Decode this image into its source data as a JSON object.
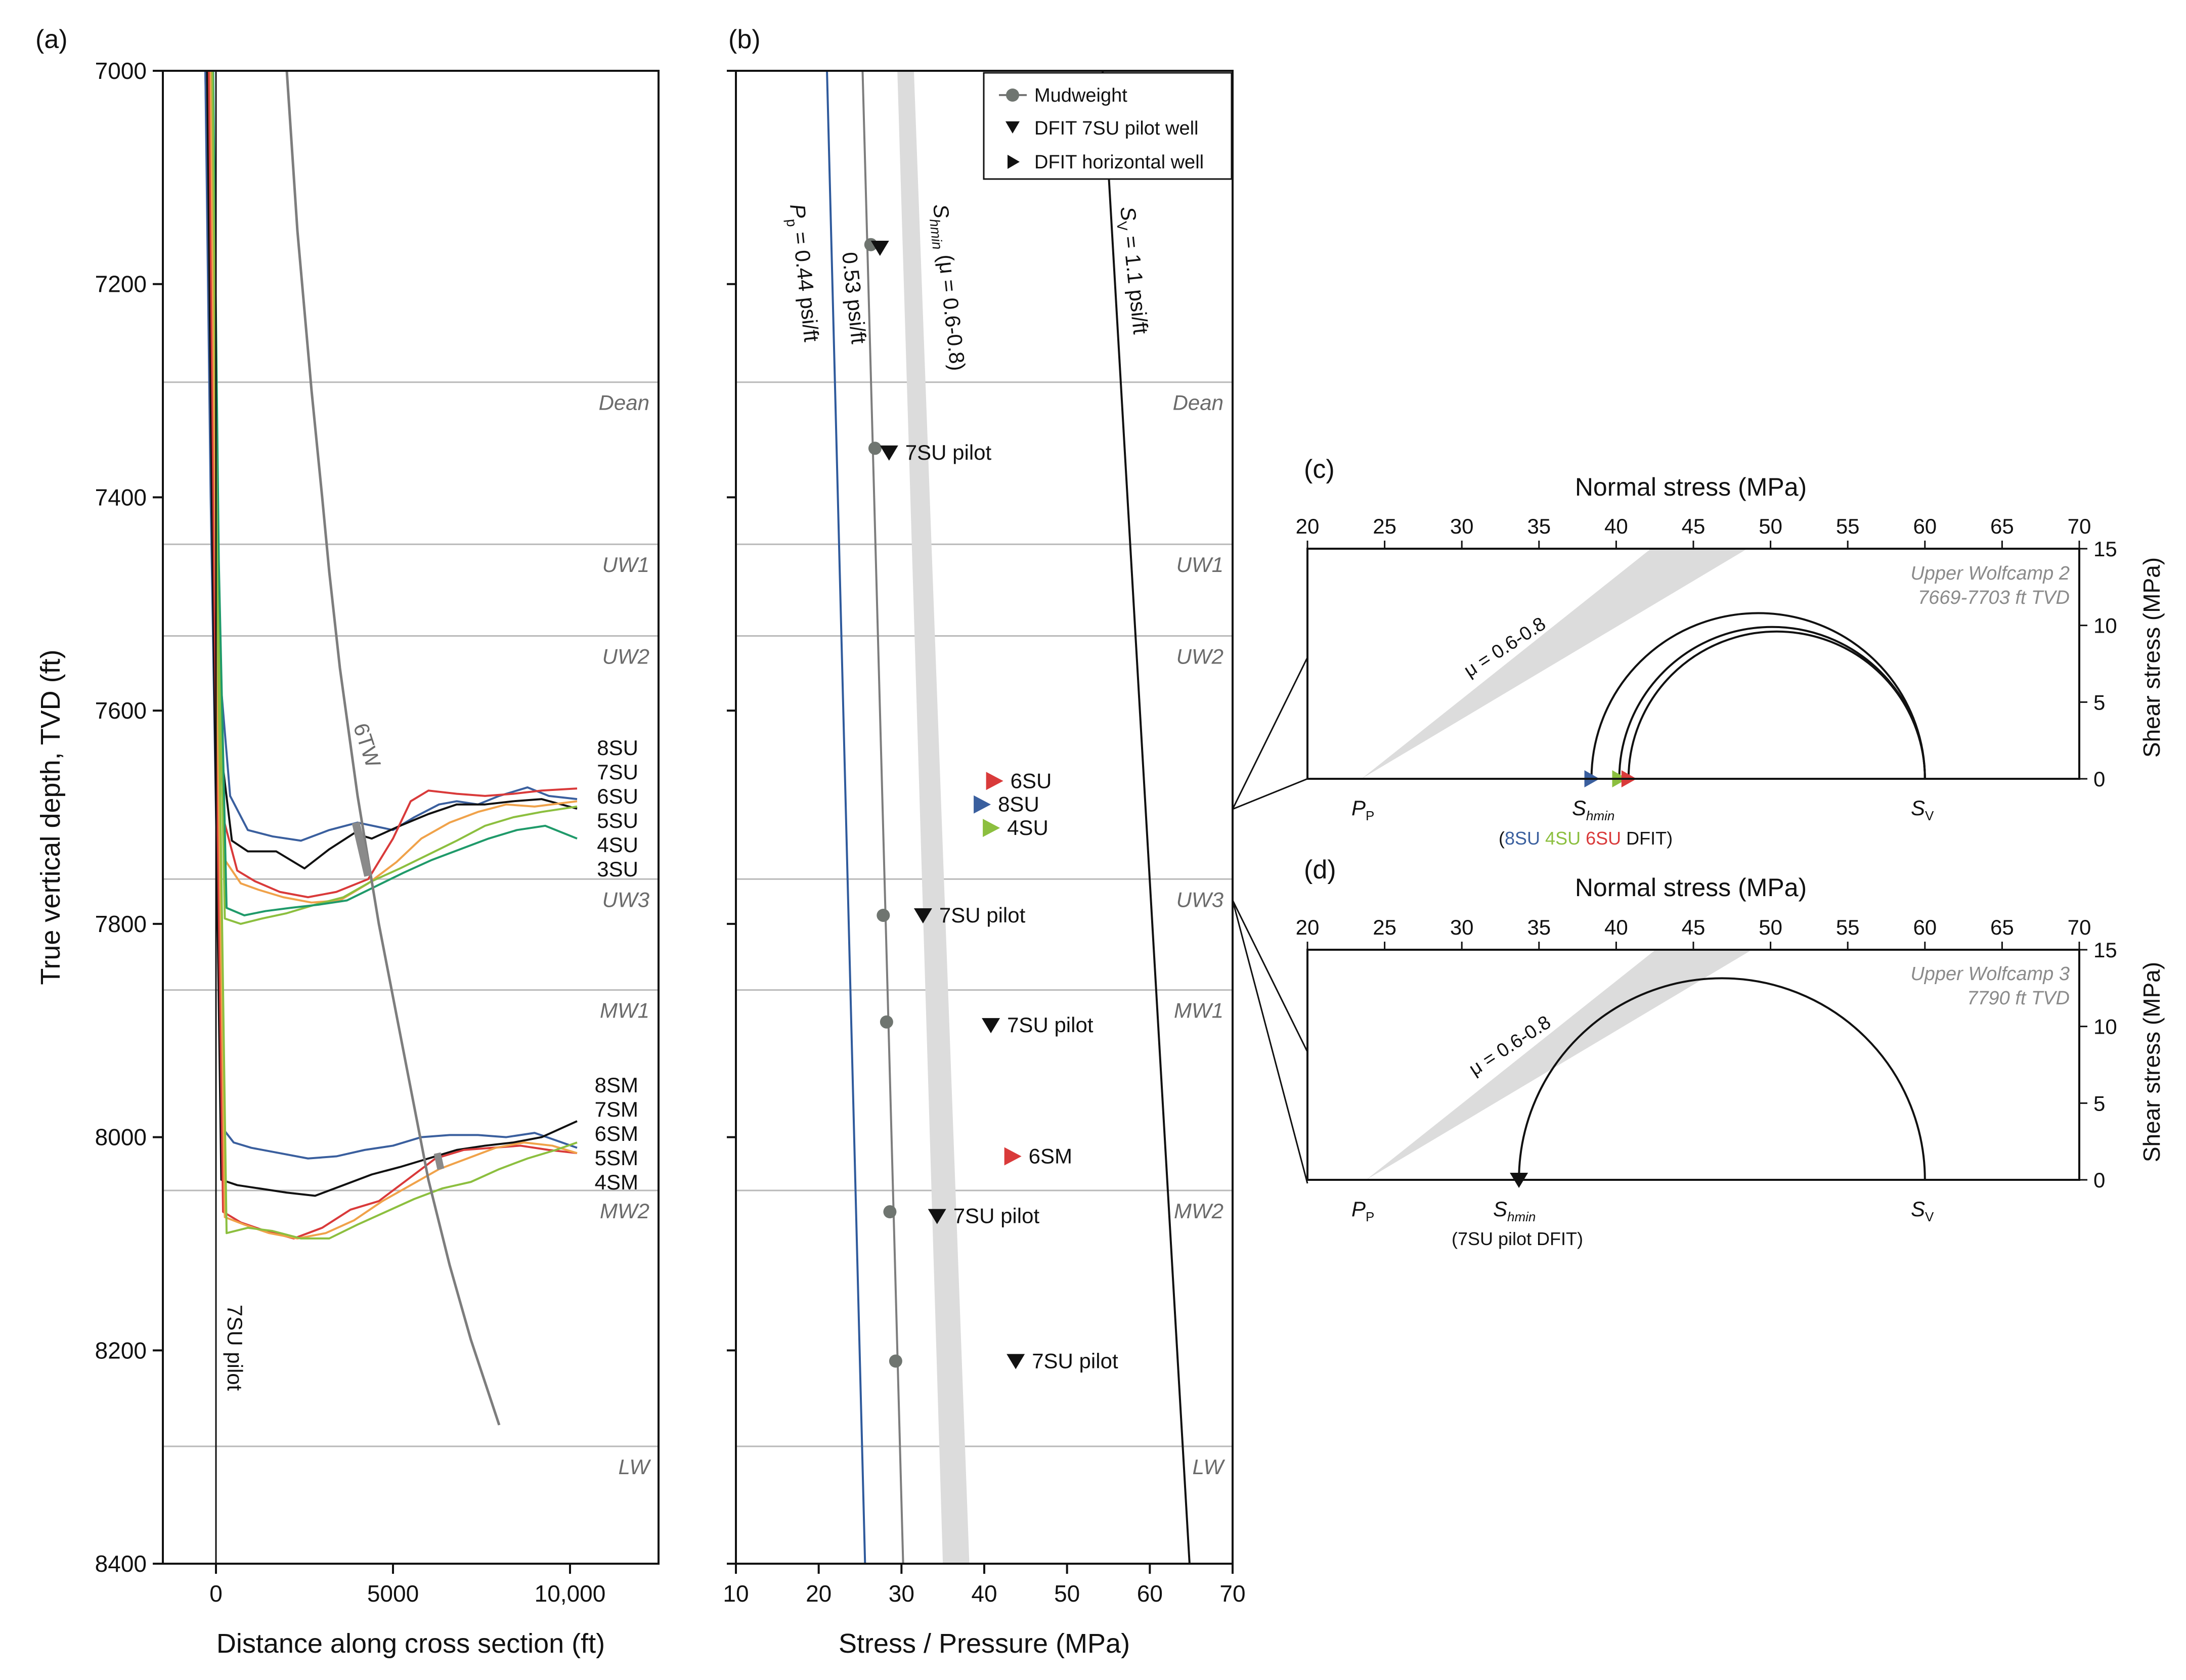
{
  "colors": {
    "8SU": "#3a5f9e",
    "7SU": "#111111",
    "6SU": "#d93a3a",
    "5SU": "#f0a24a",
    "4SU": "#8cbf3f",
    "3SU": "#1f9a6a",
    "gray": "#7d7d7d",
    "shade": "#dcdcdc",
    "pp": "#2f5a9c"
  },
  "chart_data": [
    {
      "type": "line",
      "panel": "(a)",
      "xlabel": "Distance along cross section (ft)",
      "ylabel": "True vertical depth, TVD (ft)",
      "xlim": [
        -1500,
        12500
      ],
      "ylim": [
        8400,
        7000
      ],
      "x_ticks": [
        0,
        5000,
        10000
      ],
      "x_tick_labels": [
        "0",
        "5000",
        "10,000"
      ],
      "y_ticks": [
        7000,
        7200,
        7400,
        7600,
        7800,
        8000,
        8200,
        8400
      ],
      "y_tick_labels": [
        "7000",
        "7200",
        "7400",
        "7600",
        "7800",
        "8000",
        "8200",
        "8400"
      ],
      "formation_tops": [
        {
          "name": "Dean",
          "depth": 7292
        },
        {
          "name": "UW1",
          "depth": 7444
        },
        {
          "name": "UW2",
          "depth": 7530
        },
        {
          "name": "UW3",
          "depth": 7758
        },
        {
          "name": "MW1",
          "depth": 7862
        },
        {
          "name": "MW2",
          "depth": 8050
        },
        {
          "name": "LW",
          "depth": 8290
        }
      ],
      "well_labels": [
        "7SU pilot",
        "6TW"
      ],
      "series": [
        {
          "name": "8SU",
          "x": [
            -300,
            -150,
            100,
            400,
            900,
            1600,
            2400,
            3200,
            4000,
            5000,
            5600,
            6300,
            6800,
            7400,
            8000,
            8800,
            9400,
            10200
          ],
          "y": [
            7000,
            7300,
            7560,
            7680,
            7712,
            7718,
            7722,
            7712,
            7705,
            7712,
            7700,
            7688,
            7685,
            7688,
            7680,
            7672,
            7680,
            7683
          ]
        },
        {
          "name": "7SU",
          "x": [
            -250,
            -100,
            150,
            450,
            900,
            1700,
            2500,
            3200,
            3900,
            4400,
            5200,
            6000,
            6800,
            7600,
            8400,
            9200,
            10200
          ],
          "y": [
            7000,
            7350,
            7640,
            7722,
            7732,
            7732,
            7748,
            7730,
            7715,
            7720,
            7708,
            7697,
            7688,
            7688,
            7685,
            7683,
            7692
          ]
        },
        {
          "name": "6SU",
          "x": [
            -200,
            -50,
            200,
            600,
            1100,
            1800,
            2600,
            3400,
            4300,
            5000,
            5500,
            6000,
            6800,
            7600,
            8400,
            9200,
            10200
          ],
          "y": [
            7000,
            7380,
            7700,
            7750,
            7760,
            7770,
            7775,
            7770,
            7758,
            7720,
            7685,
            7675,
            7678,
            7680,
            7678,
            7675,
            7673
          ]
        },
        {
          "name": "5SU",
          "x": [
            -150,
            0,
            250,
            700,
            1200,
            1900,
            2700,
            3500,
            4300,
            5100,
            5800,
            6600,
            7400,
            8200,
            9000,
            10200
          ],
          "y": [
            7000,
            7420,
            7740,
            7762,
            7768,
            7775,
            7780,
            7778,
            7762,
            7742,
            7720,
            7705,
            7695,
            7688,
            7690,
            7685
          ]
        },
        {
          "name": "4SU",
          "x": [
            -100,
            50,
            250,
            700,
            1300,
            2000,
            2800,
            3600,
            4400,
            5200,
            6000,
            6800,
            7600,
            8400,
            9200,
            10200
          ],
          "y": [
            7000,
            7450,
            7795,
            7800,
            7795,
            7790,
            7782,
            7775,
            7760,
            7748,
            7735,
            7722,
            7708,
            7700,
            7695,
            7690
          ]
        },
        {
          "name": "3SU",
          "x": [
            -80,
            80,
            300,
            800,
            1400,
            2100,
            2900,
            3700,
            4500,
            5300,
            6100,
            6900,
            7700,
            8500,
            9300,
            10200
          ],
          "y": [
            7000,
            7460,
            7785,
            7792,
            7788,
            7785,
            7782,
            7778,
            7765,
            7752,
            7740,
            7730,
            7720,
            7712,
            7708,
            7720
          ]
        },
        {
          "name": "8SM",
          "x": [
            -300,
            -150,
            150,
            500,
            1000,
            1800,
            2600,
            3400,
            4200,
            5000,
            5800,
            6600,
            7400,
            8200,
            9000,
            10200
          ],
          "y": [
            7000,
            7400,
            7990,
            8005,
            8010,
            8015,
            8020,
            8018,
            8012,
            8008,
            8000,
            7998,
            7998,
            8000,
            7996,
            8010
          ]
        },
        {
          "name": "7SM",
          "x": [
            -250,
            -100,
            150,
            600,
            1200,
            2000,
            2800,
            3600,
            4400,
            5200,
            6000,
            6800,
            7600,
            8400,
            9200,
            10200
          ],
          "y": [
            7000,
            7450,
            8040,
            8045,
            8048,
            8052,
            8055,
            8045,
            8035,
            8028,
            8020,
            8012,
            8008,
            8005,
            8000,
            7985
          ]
        },
        {
          "name": "6SM",
          "x": [
            -200,
            -50,
            200,
            700,
            1400,
            2200,
            3000,
            3800,
            4600,
            5400,
            6200,
            7000,
            7800,
            8600,
            9400,
            10200
          ],
          "y": [
            7000,
            7480,
            8070,
            8080,
            8088,
            8095,
            8085,
            8068,
            8060,
            8040,
            8020,
            8012,
            8010,
            8008,
            8012,
            8015
          ]
        },
        {
          "name": "5SM",
          "x": [
            -150,
            0,
            250,
            800,
            1500,
            2300,
            3100,
            3900,
            4700,
            5500,
            6300,
            7100,
            7900,
            8700,
            9500,
            10200
          ],
          "y": [
            7000,
            7500,
            8075,
            8082,
            8090,
            8095,
            8090,
            8078,
            8060,
            8045,
            8030,
            8020,
            8010,
            8005,
            8008,
            8015
          ]
        },
        {
          "name": "4SM",
          "x": [
            -100,
            50,
            300,
            900,
            1600,
            2400,
            3200,
            4000,
            4800,
            5600,
            6400,
            7200,
            8000,
            8800,
            9600,
            10200
          ],
          "y": [
            7000,
            7520,
            8090,
            8085,
            8088,
            8095,
            8095,
            8082,
            8070,
            8058,
            8048,
            8042,
            8030,
            8020,
            8012,
            8005
          ]
        },
        {
          "name": "7SU pilot",
          "x": [
            0,
            0
          ],
          "y": [
            7000,
            8400
          ]
        },
        {
          "name": "6TW",
          "x": [
            2000,
            2300,
            2700,
            3000,
            3200,
            3500,
            4000,
            4600,
            5300,
            6000,
            6600,
            7200,
            8000
          ],
          "y": [
            7000,
            7150,
            7300,
            7400,
            7470,
            7560,
            7680,
            7800,
            7920,
            8040,
            8120,
            8190,
            8270
          ]
        }
      ],
      "series_labels_SU": [
        "8SU",
        "7SU",
        "6SU",
        "5SU",
        "4SU",
        "3SU"
      ],
      "series_labels_SM": [
        "8SM",
        "7SM",
        "6SM",
        "5SM",
        "4SM"
      ]
    },
    {
      "type": "line",
      "panel": "(b)",
      "xlabel": "Stress / Pressure (MPa)",
      "ylabel": "",
      "xlim": [
        10,
        70
      ],
      "ylim": [
        8400,
        7000
      ],
      "x_ticks": [
        10,
        20,
        30,
        40,
        50,
        60,
        70
      ],
      "x_tick_labels": [
        "10",
        "20",
        "30",
        "40",
        "50",
        "60",
        "70"
      ],
      "series": [
        {
          "name": "Pp",
          "x": [
            21.0,
            25.6
          ],
          "y": [
            7000,
            8400
          ]
        },
        {
          "name": "0.53 psi/ft",
          "x": [
            25.3,
            30.2
          ],
          "y": [
            7000,
            8400
          ]
        },
        {
          "name": "Shmin band low",
          "x": [
            29.5,
            35.0
          ],
          "y": [
            7000,
            8400
          ]
        },
        {
          "name": "Shmin band high",
          "x": [
            31.5,
            38.2
          ],
          "y": [
            7000,
            8400
          ]
        },
        {
          "name": "Sv",
          "x": [
            54.3,
            64.8
          ],
          "y": [
            7000,
            8400
          ]
        }
      ],
      "mudweight": {
        "x": [
          26.3,
          26.8,
          27.8,
          28.2,
          28.6,
          29.3
        ],
        "y": [
          7163,
          7354,
          7792,
          7892,
          8070,
          8210
        ]
      },
      "dfit_pilot": {
        "x": [
          27.4,
          28.5,
          32.6,
          40.8,
          34.3,
          43.8
        ],
        "y": [
          7166,
          7358,
          7792,
          7895,
          8074,
          8210
        ],
        "labels": [
          "",
          "7SU pilot",
          "7SU pilot",
          "7SU pilot",
          "7SU pilot",
          "7SU pilot"
        ]
      },
      "dfit_horizontal": [
        {
          "name": "6SU",
          "x": 41.2,
          "y": 7666
        },
        {
          "name": "8SU",
          "x": 39.7,
          "y": 7688
        },
        {
          "name": "4SU",
          "x": 40.8,
          "y": 7710
        },
        {
          "name": "6SM",
          "x": 43.4,
          "y": 8018
        }
      ],
      "line_labels": {
        "pp": "P",
        "pp_sub": "p",
        "pp_rest": " = 0.44 psi/ft",
        "mw": "0.53 psi/ft",
        "shmin": "S",
        "shmin_sub": "hmin",
        "shmin_rest": " (μ = 0.6-0.8)",
        "sv": "S",
        "sv_sub": "V",
        "sv_rest": " = 1.1 psi/ft"
      },
      "legend": [
        "Mudweight",
        "DFIT 7SU pilot well",
        "DFIT horizontal well"
      ]
    },
    {
      "type": "mohr",
      "panel": "(c)",
      "xlabel": "Normal stress (MPa)",
      "ylabel": "Shear stress (MPa)",
      "xlim": [
        20,
        70
      ],
      "ylim": [
        0,
        15
      ],
      "x_ticks": [
        20,
        25,
        30,
        35,
        40,
        45,
        50,
        55,
        60,
        65,
        70
      ],
      "y_ticks": [
        0,
        5,
        10,
        15
      ],
      "title_lines": [
        "Upper Wolfcamp 2",
        "7669-7703 ft TVD"
      ],
      "friction_label": "μ = 0.6-0.8",
      "pp": 23.5,
      "sv": 60.0,
      "circles": [
        {
          "name": "8SU",
          "shmin": 38.4
        },
        {
          "name": "4SU",
          "shmin": 40.2
        },
        {
          "name": "6SU",
          "shmin": 40.8
        }
      ],
      "shmin_label": "S",
      "shmin_sub": "hmin",
      "pp_label": "P",
      "pp_sub": "P",
      "sv_label": "S",
      "sv_sub": "V",
      "note_open": "(",
      "note_items": [
        "8SU",
        "4SU",
        "6SU"
      ],
      "note_close": " DFIT)"
    },
    {
      "type": "mohr",
      "panel": "(d)",
      "xlabel": "Normal stress (MPa)",
      "ylabel": "Shear stress (MPa)",
      "xlim": [
        20,
        70
      ],
      "ylim": [
        0,
        15
      ],
      "x_ticks": [
        20,
        25,
        30,
        35,
        40,
        45,
        50,
        55,
        60,
        65,
        70
      ],
      "y_ticks": [
        0,
        5,
        10,
        15
      ],
      "title_lines": [
        "Upper Wolfcamp 3",
        "7790 ft TVD"
      ],
      "friction_label": "μ = 0.6-0.8",
      "pp": 23.8,
      "sv": 60.0,
      "circles": [
        {
          "name": "7SU pilot",
          "shmin": 33.7
        }
      ],
      "shmin_label": "S",
      "shmin_sub": "hmin",
      "pp_label": "P",
      "pp_sub": "P",
      "sv_label": "S",
      "sv_sub": "V",
      "note": "(7SU pilot DFIT)"
    }
  ]
}
